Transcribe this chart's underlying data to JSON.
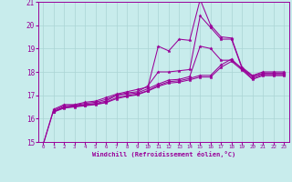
{
  "xlabel": "Windchill (Refroidissement éolien,°C)",
  "xlim": [
    -0.5,
    23.5
  ],
  "ylim": [
    15,
    21
  ],
  "yticks": [
    15,
    16,
    17,
    18,
    19,
    20,
    21
  ],
  "xticks": [
    0,
    1,
    2,
    3,
    4,
    5,
    6,
    7,
    8,
    9,
    10,
    11,
    12,
    13,
    14,
    15,
    16,
    17,
    18,
    19,
    20,
    21,
    22,
    23
  ],
  "bg_color": "#c8ecec",
  "grid_color": "#aad4d4",
  "line_color": "#990099",
  "lines": [
    {
      "x": [
        0,
        1,
        2,
        3,
        4,
        5,
        6,
        7,
        8,
        9,
        10,
        11,
        12,
        13,
        14,
        15,
        16,
        17,
        18,
        19,
        20,
        21,
        22,
        23
      ],
      "y": [
        14.9,
        16.4,
        16.6,
        16.6,
        16.7,
        16.75,
        16.9,
        17.05,
        17.15,
        17.25,
        17.35,
        19.1,
        18.9,
        19.4,
        19.35,
        21.1,
        20.0,
        19.5,
        19.45,
        18.2,
        17.85,
        18.0,
        18.0,
        18.0
      ]
    },
    {
      "x": [
        0,
        1,
        2,
        3,
        4,
        5,
        6,
        7,
        8,
        9,
        10,
        11,
        12,
        13,
        14,
        15,
        16,
        17,
        18,
        19,
        20,
        21,
        22,
        23
      ],
      "y": [
        14.9,
        16.35,
        16.55,
        16.58,
        16.65,
        16.7,
        16.82,
        17.0,
        17.1,
        17.15,
        17.4,
        18.0,
        18.0,
        18.05,
        18.1,
        20.4,
        19.9,
        19.4,
        19.4,
        18.15,
        17.8,
        17.95,
        17.95,
        17.95
      ]
    },
    {
      "x": [
        1,
        2,
        3,
        4,
        5,
        6,
        7,
        8,
        9,
        10,
        11,
        12,
        13,
        14,
        15,
        16,
        17,
        18,
        19,
        20,
        21,
        22,
        23
      ],
      "y": [
        16.3,
        16.5,
        16.55,
        16.6,
        16.65,
        16.75,
        17.0,
        17.05,
        17.1,
        17.28,
        17.48,
        17.65,
        17.68,
        17.8,
        19.1,
        19.0,
        18.5,
        18.5,
        18.15,
        17.8,
        17.92,
        17.92,
        17.92
      ]
    },
    {
      "x": [
        1,
        2,
        3,
        4,
        5,
        6,
        7,
        8,
        9,
        10,
        11,
        12,
        13,
        14,
        15,
        16,
        17,
        18,
        19,
        20,
        21,
        22,
        23
      ],
      "y": [
        16.3,
        16.48,
        16.52,
        16.57,
        16.62,
        16.7,
        16.9,
        16.98,
        17.05,
        17.2,
        17.42,
        17.58,
        17.62,
        17.72,
        17.85,
        17.85,
        18.3,
        18.55,
        18.12,
        17.72,
        17.88,
        17.88,
        17.88
      ]
    },
    {
      "x": [
        1,
        2,
        3,
        4,
        5,
        6,
        7,
        8,
        9,
        10,
        11,
        12,
        13,
        14,
        15,
        16,
        17,
        18,
        19,
        20,
        21,
        22,
        23
      ],
      "y": [
        16.28,
        16.45,
        16.5,
        16.55,
        16.6,
        16.68,
        16.85,
        16.95,
        17.02,
        17.18,
        17.38,
        17.52,
        17.56,
        17.66,
        17.78,
        17.78,
        18.2,
        18.45,
        18.08,
        17.68,
        17.84,
        17.84,
        17.84
      ]
    }
  ]
}
